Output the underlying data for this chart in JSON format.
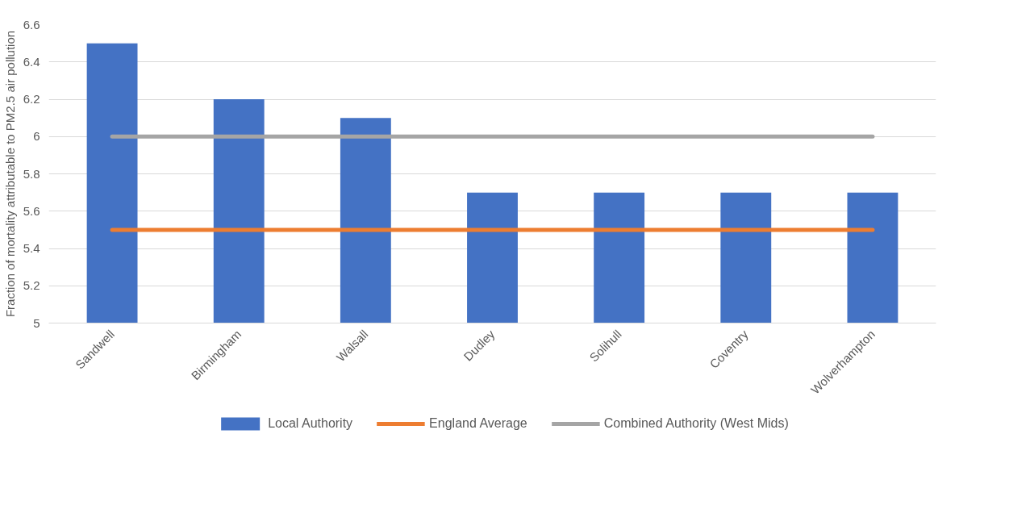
{
  "chart_data": {
    "type": "bar",
    "ylabel": "Fraction of mortality attributable to PM2.5 air pollution",
    "categories": [
      "Sandwell",
      "Birmingham",
      "Walsall",
      "Dudley",
      "Solihull",
      "Coventry",
      "Wolverhampton"
    ],
    "series": [
      {
        "name": "Local Authority",
        "color": "#4472c4",
        "values": [
          6.5,
          6.2,
          6.1,
          5.7,
          5.7,
          5.7,
          5.7
        ]
      },
      {
        "name": "England Average",
        "type": "line",
        "color": "#ed7d31",
        "values": [
          5.5,
          5.5,
          5.5,
          5.5,
          5.5,
          5.5,
          5.5
        ]
      },
      {
        "name": "Combined Authority (West Mids)",
        "type": "line",
        "color": "#a5a5a5",
        "values": [
          6.0,
          6.0,
          6.0,
          6.0,
          6.0,
          6.0,
          6.0
        ]
      }
    ],
    "ylim": [
      5,
      6.6
    ],
    "yticks": [
      5,
      5.2,
      5.4,
      5.6,
      5.8,
      6,
      6.2,
      6.4,
      6.6
    ],
    "grid": "y",
    "legend": "bottom"
  }
}
